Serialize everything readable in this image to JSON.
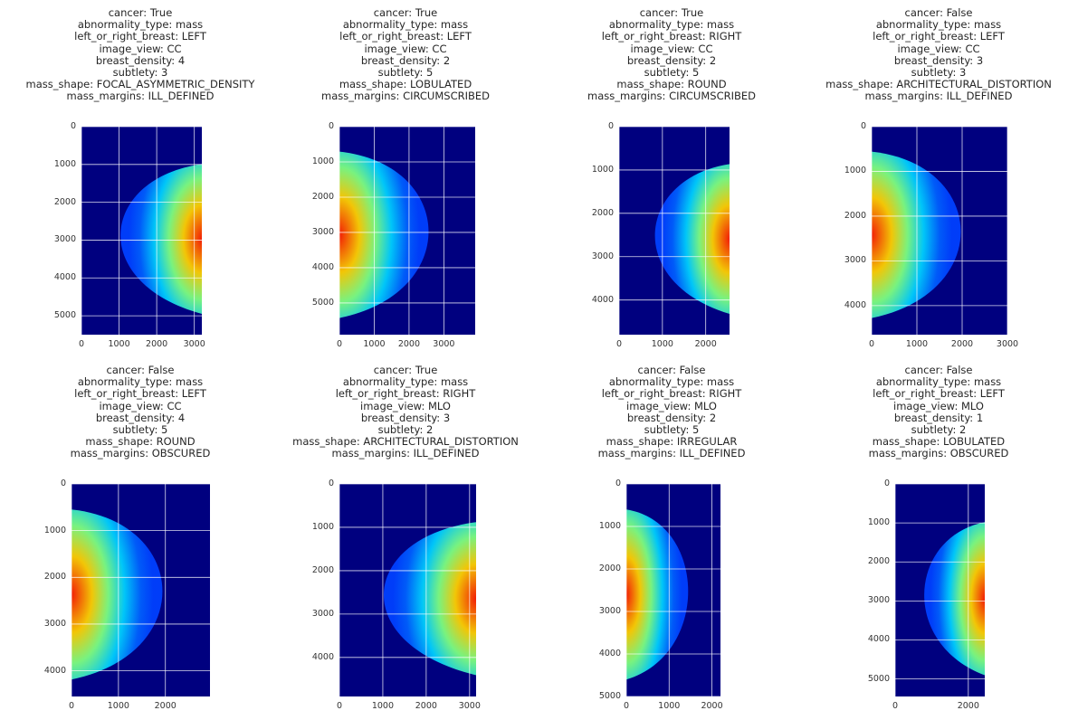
{
  "colormap": "jet",
  "grid": true,
  "panels": [
    {
      "title_lines": [
        "cancer: True",
        "abnormality_type: mass",
        "left_or_right_breast: LEFT",
        "image_view: CC",
        "breast_density: 4",
        "subtlety: 3",
        "mass_shape: FOCAL_ASYMMETRIC_DENSITY",
        "mass_margins: ILL_DEFINED"
      ],
      "image_size": [
        3200,
        5500
      ],
      "x_ticks": [
        0,
        1000,
        2000,
        3000
      ],
      "y_ticks": [
        0,
        1000,
        2000,
        3000,
        4000,
        5000
      ],
      "breast_side": "right"
    },
    {
      "title_lines": [
        "cancer: True",
        "abnormality_type: mass",
        "left_or_right_breast: LEFT",
        "image_view: CC",
        "breast_density: 2",
        "subtlety: 5",
        "mass_shape: LOBULATED",
        "mass_margins: CIRCUMSCRIBED"
      ],
      "image_size": [
        3900,
        5900
      ],
      "x_ticks": [
        0,
        1000,
        2000,
        3000
      ],
      "y_ticks": [
        0,
        1000,
        2000,
        3000,
        4000,
        5000
      ],
      "breast_side": "left"
    },
    {
      "title_lines": [
        "cancer: True",
        "abnormality_type: mass",
        "left_or_right_breast: RIGHT",
        "image_view: CC",
        "breast_density: 2",
        "subtlety: 5",
        "mass_shape: ROUND",
        "mass_margins: CIRCUMSCRIBED"
      ],
      "image_size": [
        2550,
        4800
      ],
      "x_ticks": [
        0,
        1000,
        2000
      ],
      "y_ticks": [
        0,
        1000,
        2000,
        3000,
        4000
      ],
      "breast_side": "right"
    },
    {
      "title_lines": [
        "cancer: False",
        "abnormality_type: mass",
        "left_or_right_breast: LEFT",
        "image_view: CC",
        "breast_density: 3",
        "subtlety: 3",
        "mass_shape: ARCHITECTURAL_DISTORTION",
        "mass_margins: ILL_DEFINED"
      ],
      "image_size": [
        3000,
        4650
      ],
      "x_ticks": [
        0,
        1000,
        2000,
        3000
      ],
      "y_ticks": [
        0,
        1000,
        2000,
        3000,
        4000
      ],
      "breast_side": "left"
    },
    {
      "title_lines": [
        "cancer: False",
        "abnormality_type: mass",
        "left_or_right_breast: LEFT",
        "image_view: CC",
        "breast_density: 4",
        "subtlety: 5",
        "mass_shape: ROUND",
        "mass_margins: OBSCURED"
      ],
      "image_size": [
        2950,
        4550
      ],
      "x_ticks": [
        0,
        1000,
        2000
      ],
      "y_ticks": [
        0,
        1000,
        2000,
        3000,
        4000
      ],
      "breast_side": "left"
    },
    {
      "title_lines": [
        "cancer: True",
        "abnormality_type: mass",
        "left_or_right_breast: RIGHT",
        "image_view: MLO",
        "breast_density: 3",
        "subtlety: 2",
        "mass_shape: ARCHITECTURAL_DISTORTION",
        "mass_margins: ILL_DEFINED"
      ],
      "image_size": [
        3150,
        4900
      ],
      "x_ticks": [
        0,
        1000,
        2000,
        3000
      ],
      "y_ticks": [
        0,
        1000,
        2000,
        3000,
        4000
      ],
      "breast_side": "right"
    },
    {
      "title_lines": [
        "cancer: False",
        "abnormality_type: mass",
        "left_or_right_breast: RIGHT",
        "image_view: MLO",
        "breast_density: 2",
        "subtlety: 5",
        "mass_shape: IRREGULAR",
        "mass_margins: ILL_DEFINED"
      ],
      "image_size": [
        2200,
        5000
      ],
      "x_ticks": [
        0,
        1000,
        2000
      ],
      "y_ticks": [
        0,
        1000,
        2000,
        3000,
        4000,
        5000
      ],
      "breast_side": "left"
    },
    {
      "title_lines": [
        "cancer: False",
        "abnormality_type: mass",
        "left_or_right_breast: LEFT",
        "image_view: MLO",
        "breast_density: 1",
        "subtlety: 2",
        "mass_shape: LOBULATED",
        "mass_margins: OBSCURED"
      ],
      "image_size": [
        2450,
        5450
      ],
      "x_ticks": [
        0,
        2000
      ],
      "y_ticks": [
        0,
        1000,
        2000,
        3000,
        4000,
        5000
      ],
      "breast_side": "right"
    }
  ]
}
